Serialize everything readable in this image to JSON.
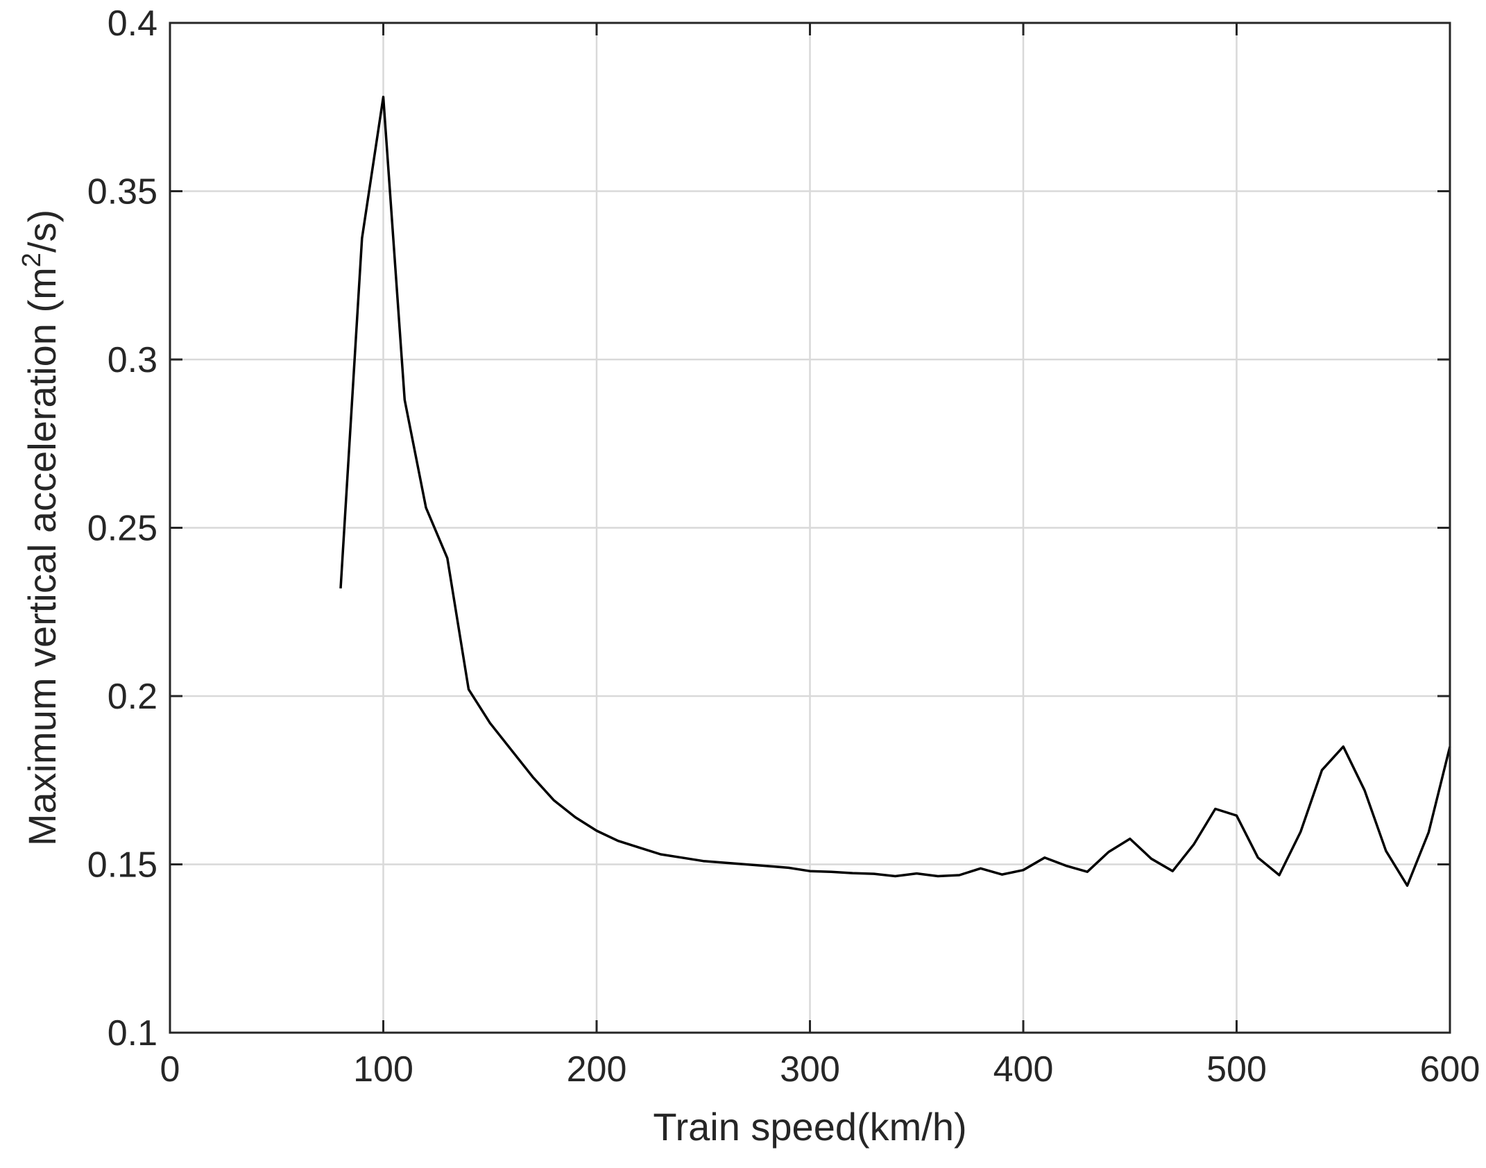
{
  "chart_data": {
    "type": "line",
    "xlabel": "Train speed(km/h)",
    "ylabel_main": "Maximum vertical acceleration (m",
    "ylabel_sup": "2",
    "ylabel_end": "/s)",
    "xlim": [
      0,
      600
    ],
    "ylim": [
      0.1,
      0.4
    ],
    "x_ticks": [
      0,
      100,
      200,
      300,
      400,
      500,
      600
    ],
    "x_tick_labels": [
      "0",
      "100",
      "200",
      "300",
      "400",
      "500",
      "600"
    ],
    "y_ticks": [
      0.1,
      0.15,
      0.2,
      0.25,
      0.3,
      0.35,
      0.4
    ],
    "y_tick_labels": [
      "0.1",
      "0.15",
      "0.2",
      "0.25",
      "0.3",
      "0.35",
      "0.4"
    ],
    "grid": true,
    "line_color": "#000000",
    "series": [
      {
        "x": [
          80,
          90,
          100,
          110,
          120,
          130,
          140,
          150,
          160,
          170,
          180,
          190,
          200,
          210,
          220,
          230,
          240,
          250,
          260,
          270,
          280,
          290,
          300,
          310,
          320,
          330,
          340,
          350,
          360,
          370,
          380,
          390,
          400,
          410,
          420,
          430,
          440,
          450,
          460,
          470,
          480,
          490,
          500,
          510,
          520,
          530,
          540,
          550,
          560,
          570,
          580,
          590,
          600
        ],
        "y": [
          0.232,
          0.336,
          0.378,
          0.288,
          0.256,
          0.241,
          0.202,
          0.192,
          0.184,
          0.176,
          0.169,
          0.164,
          0.16,
          0.157,
          0.155,
          0.153,
          0.152,
          0.151,
          0.1505,
          0.15,
          0.1495,
          0.149,
          0.148,
          0.1478,
          0.1474,
          0.1472,
          0.1465,
          0.1473,
          0.1465,
          0.1468,
          0.1488,
          0.147,
          0.1483,
          0.152,
          0.1496,
          0.1478,
          0.1537,
          0.1576,
          0.1517,
          0.148,
          0.156,
          0.1665,
          0.1645,
          0.152,
          0.1468,
          0.1597,
          0.178,
          0.185,
          0.172,
          0.154,
          0.1437,
          0.1595,
          0.185
        ]
      }
    ]
  }
}
